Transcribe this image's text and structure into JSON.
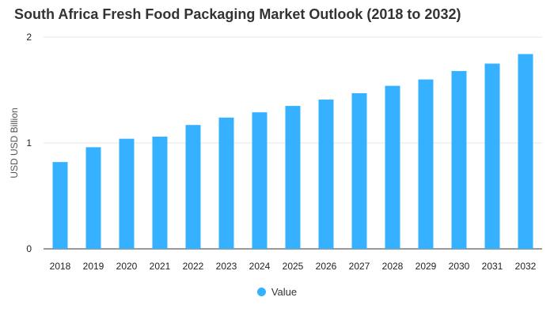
{
  "colors": {
    "bar": "#35b1ff",
    "grid": "#e6e6e6",
    "axis": "#333333"
  },
  "chart_data": {
    "type": "bar",
    "title": "South Africa Fresh Food Packaging Market Outlook (2018 to 2032)",
    "xlabel": "",
    "ylabel": "USD USD Billion",
    "categories": [
      "2018",
      "2019",
      "2020",
      "2021",
      "2022",
      "2023",
      "2024",
      "2025",
      "2026",
      "2027",
      "2028",
      "2029",
      "2030",
      "2031",
      "2032"
    ],
    "series": [
      {
        "name": "Value",
        "values": [
          0.82,
          0.96,
          1.04,
          1.06,
          1.17,
          1.24,
          1.29,
          1.35,
          1.41,
          1.47,
          1.54,
          1.6,
          1.68,
          1.75,
          1.84
        ]
      }
    ],
    "ylim": [
      0,
      2
    ],
    "yticks": [
      0,
      1,
      2
    ],
    "grid": true,
    "legend_position": "bottom"
  }
}
